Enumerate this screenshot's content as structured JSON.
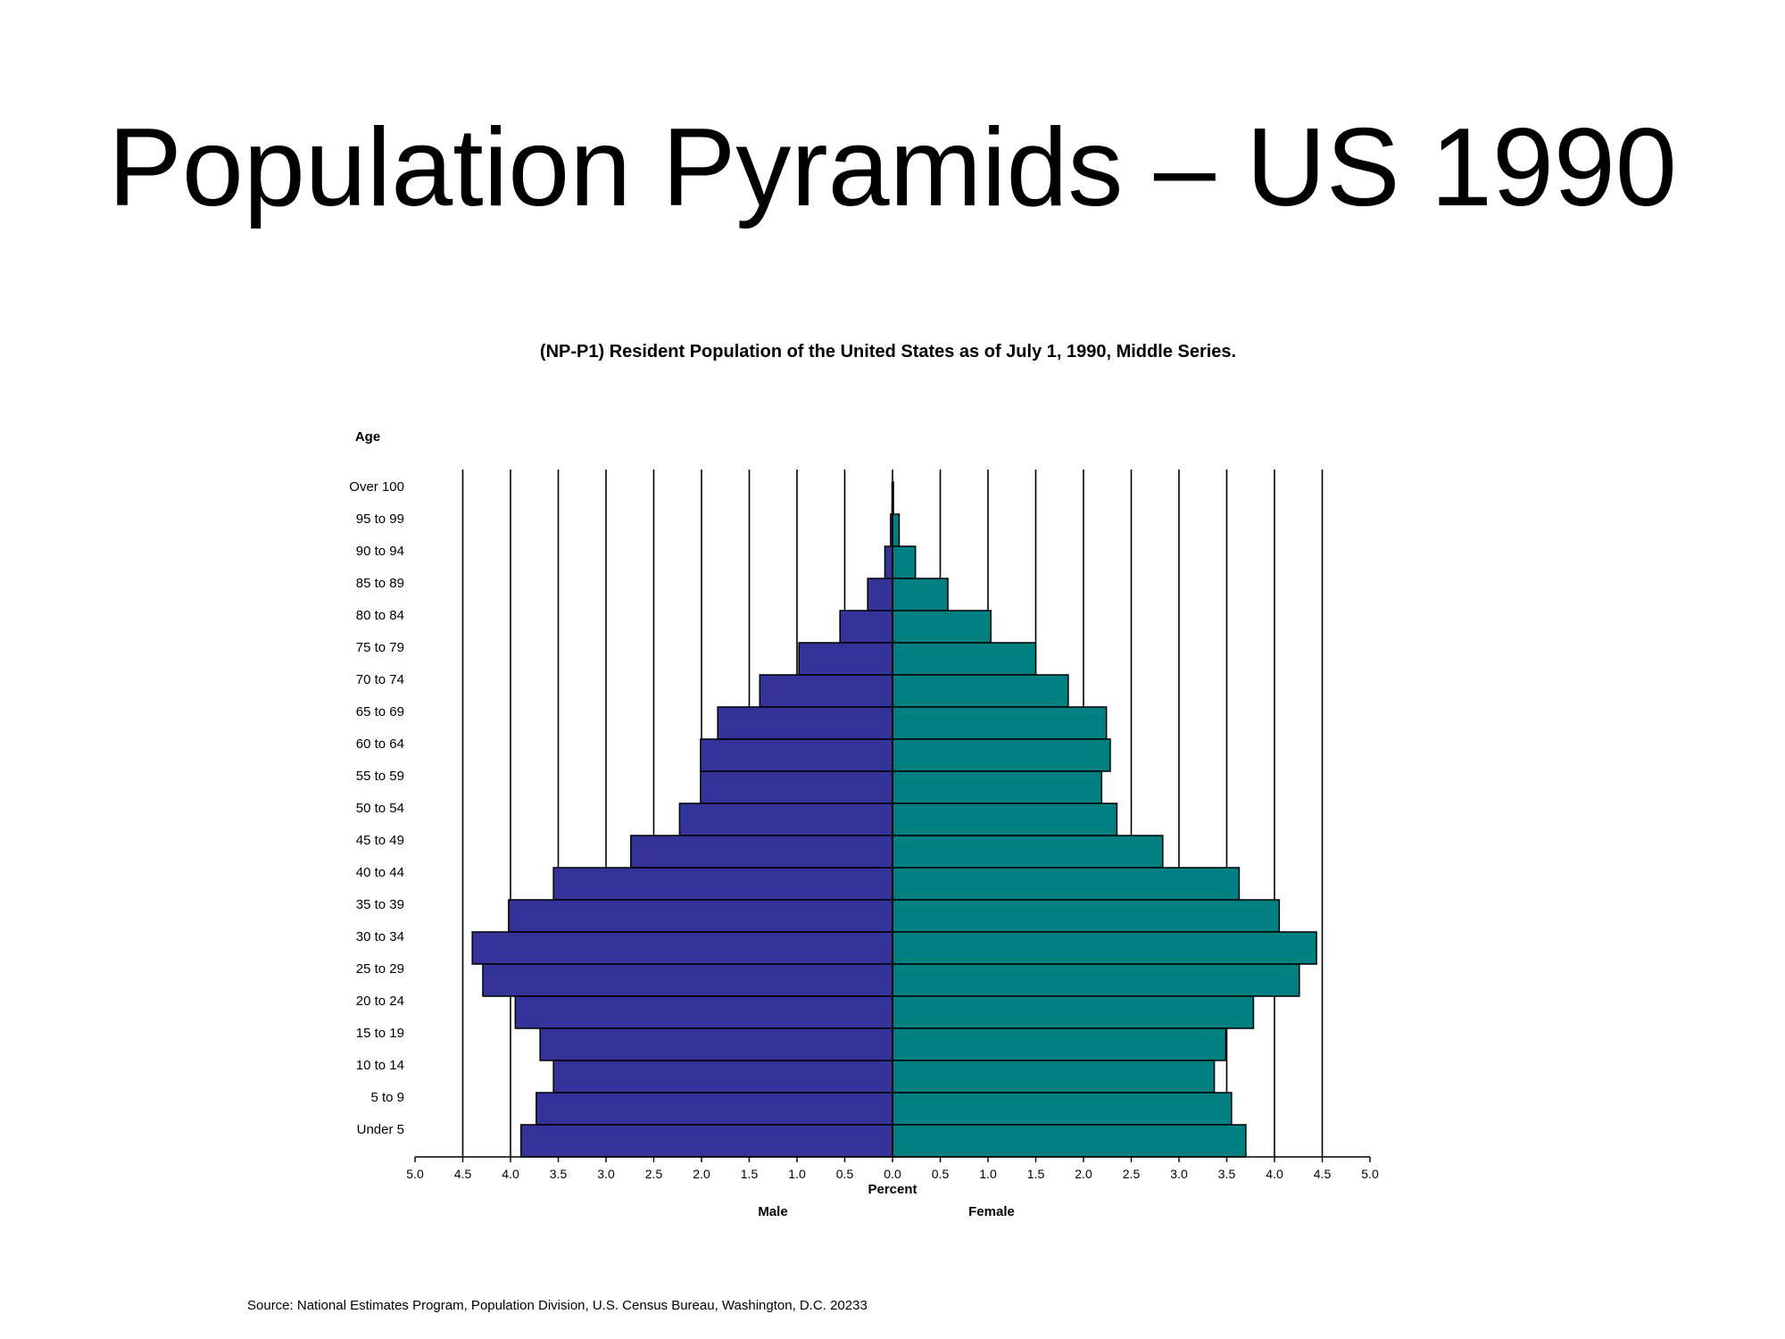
{
  "slide": {
    "title": "Population Pyramids – US 1990",
    "source": "Source:  National Estimates Program, Population Division, U.S. Census Bureau, Washington, D.C. 20233"
  },
  "chart_data": {
    "type": "bar",
    "orientation": "horizontal-pyramid",
    "title": "(NP-P1)  Resident Population of the United States as of July 1, 1990, Middle Series.",
    "ylabel": "Age",
    "xlabel": "Percent",
    "left_label": "Male",
    "right_label": "Female",
    "xlim": [
      -5.0,
      5.0
    ],
    "x_ticks": [
      5.0,
      4.5,
      4.0,
      3.5,
      3.0,
      2.5,
      2.0,
      1.5,
      1.0,
      0.5,
      0.0,
      0.5,
      1.0,
      1.5,
      2.0,
      2.5,
      3.0,
      3.5,
      4.0,
      4.5,
      5.0
    ],
    "x_tick_labels": [
      "5.0",
      "4.5",
      "4.0",
      "3.5",
      "3.0",
      "2.5",
      "2.0",
      "1.5",
      "1.0",
      "0.5",
      "0.0",
      "0.5",
      "1.0",
      "1.5",
      "2.0",
      "2.5",
      "3.0",
      "3.5",
      "4.0",
      "4.5",
      "5.0"
    ],
    "grid": "vertical",
    "categories": [
      "Over 100",
      "95 to 99",
      "90 to 94",
      "85 to 89",
      "80 to 84",
      "75 to 79",
      "70 to 74",
      "65 to 69",
      "60 to 64",
      "55 to 59",
      "50 to 54",
      "45 to 49",
      "40 to 44",
      "35 to 39",
      "30 to 34",
      "25 to 29",
      "20 to 24",
      "15 to 19",
      "10 to 14",
      "5 to 9",
      "Under 5"
    ],
    "series": [
      {
        "name": "Male",
        "color": "#333399",
        "values": [
          0.005,
          0.02,
          0.08,
          0.26,
          0.55,
          0.98,
          1.39,
          1.83,
          2.01,
          2.01,
          2.23,
          2.74,
          3.55,
          4.02,
          4.4,
          4.29,
          3.95,
          3.69,
          3.55,
          3.73,
          3.89
        ]
      },
      {
        "name": "Female",
        "color": "#008080",
        "values": [
          0.01,
          0.07,
          0.24,
          0.58,
          1.03,
          1.5,
          1.84,
          2.24,
          2.28,
          2.19,
          2.35,
          2.83,
          3.63,
          4.05,
          4.44,
          4.26,
          3.78,
          3.49,
          3.37,
          3.55,
          3.7
        ]
      }
    ]
  }
}
